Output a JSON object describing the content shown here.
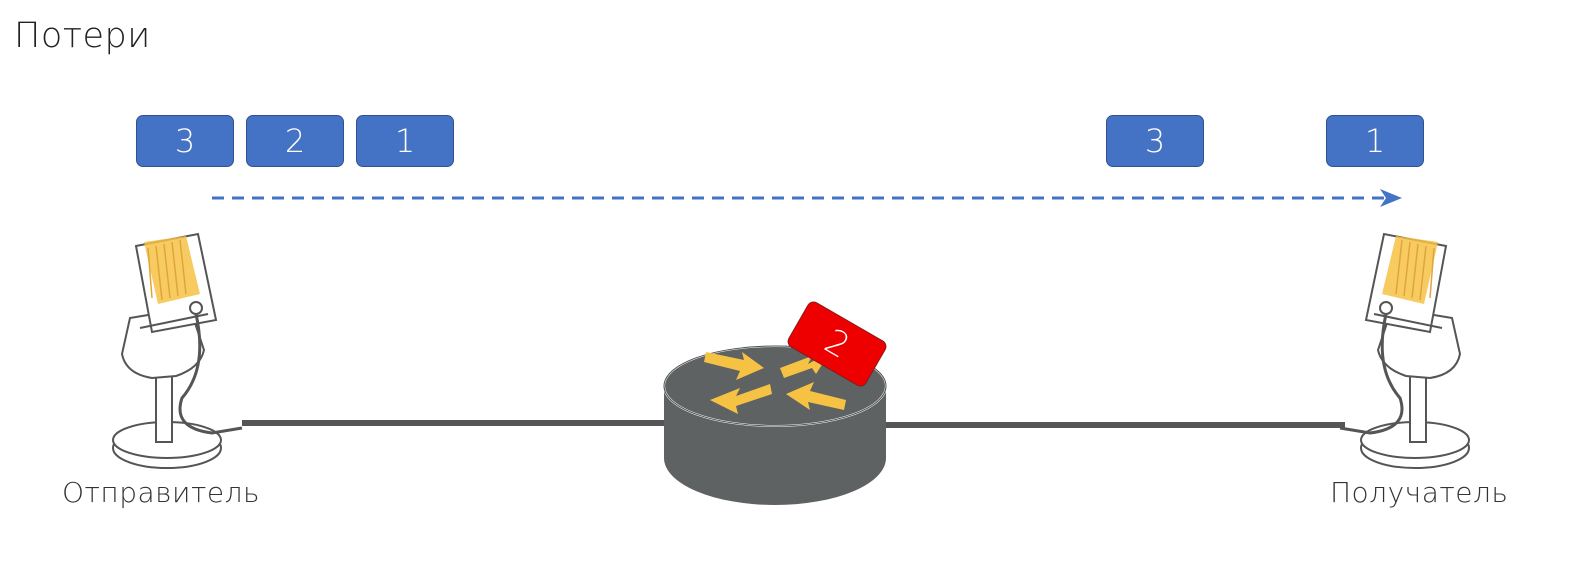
{
  "title": "Потери",
  "sender": {
    "label": "Отправитель",
    "queue": [
      "3",
      "2",
      "1"
    ]
  },
  "receiver": {
    "label": "Получатель",
    "received": [
      "3",
      "1"
    ]
  },
  "router": {
    "lost_packet": "2"
  },
  "colors": {
    "packet": "#4472C4",
    "lost": "#EE0000",
    "router": "#5F6263",
    "arrows": "#F6C244",
    "link": "#555555"
  },
  "icons": {
    "sender": "microphone-icon",
    "receiver": "microphone-icon",
    "router": "router-icon"
  }
}
